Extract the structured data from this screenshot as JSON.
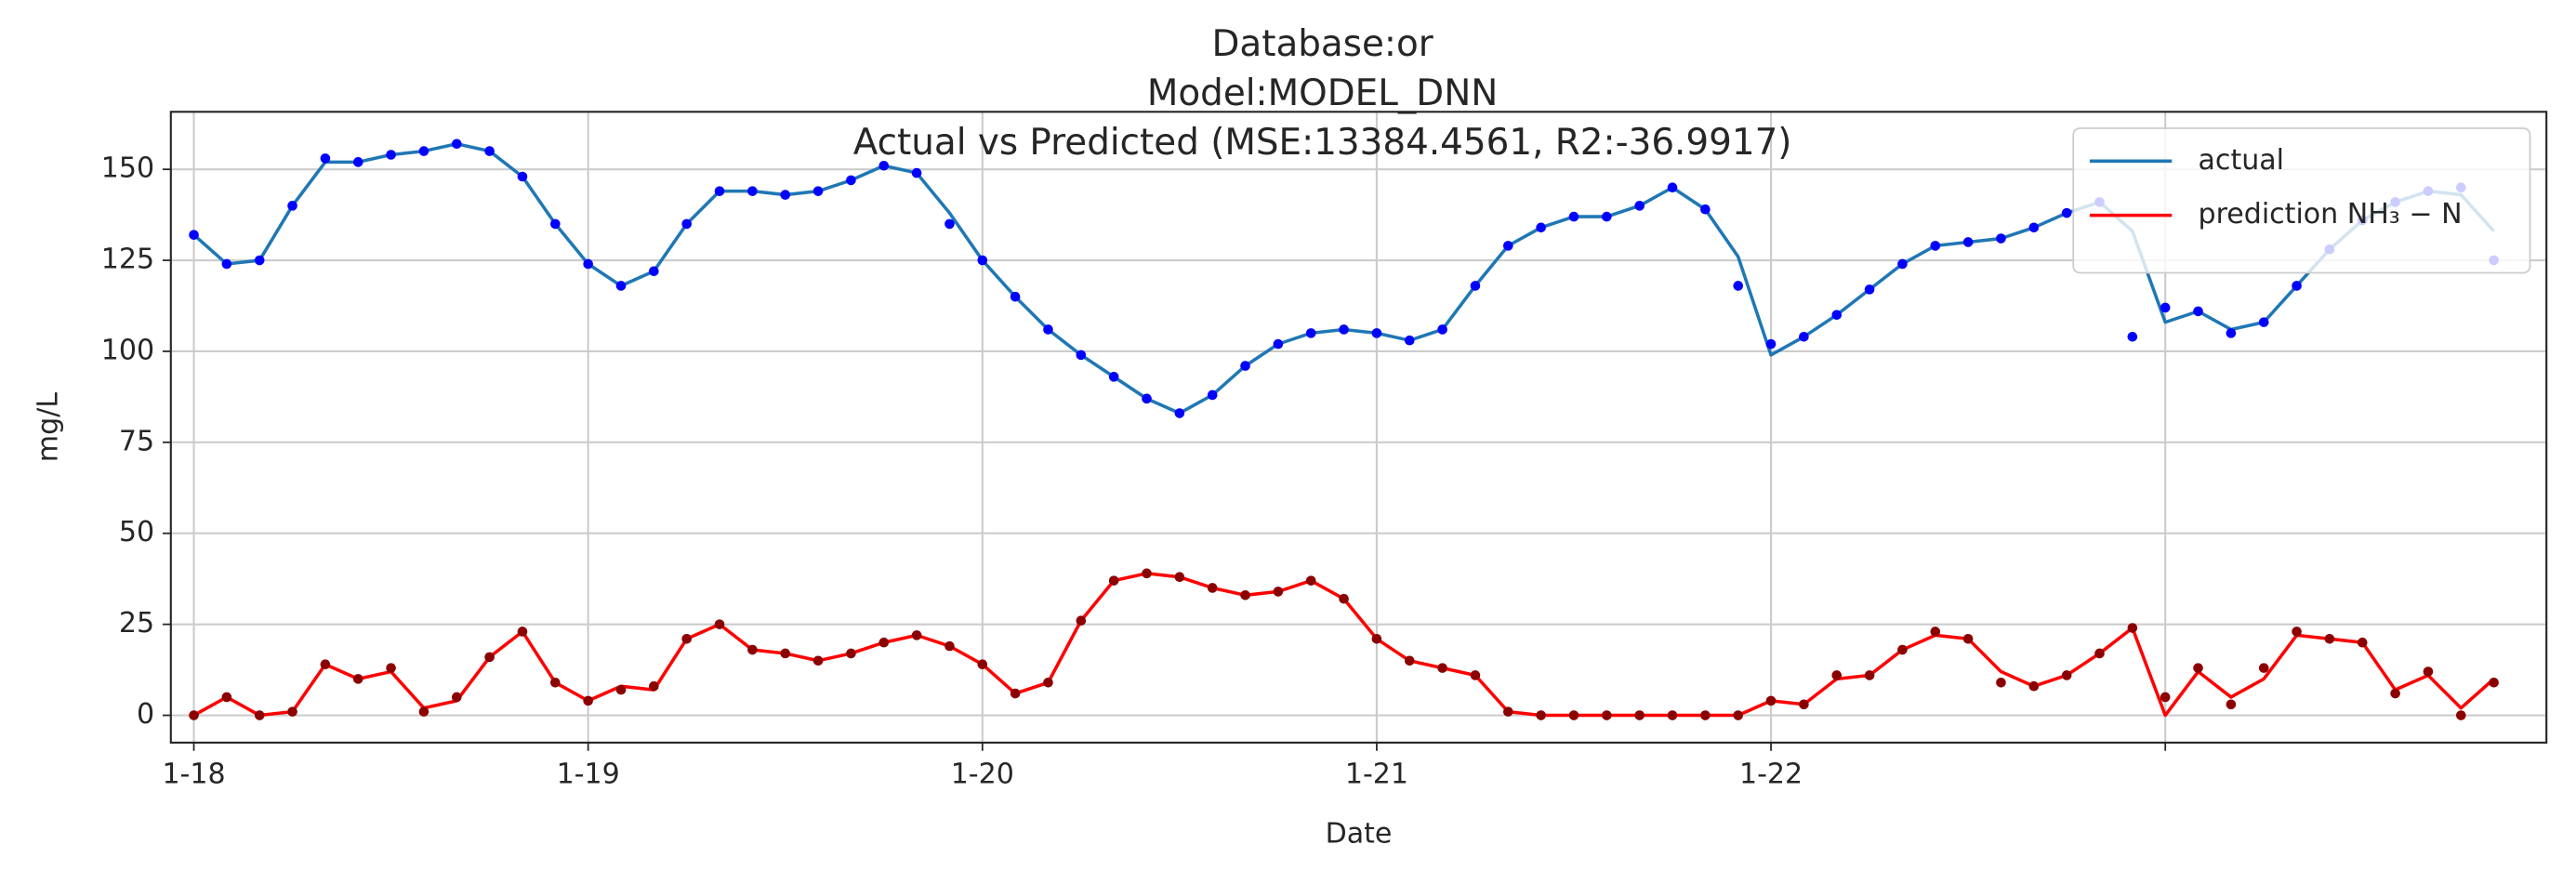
{
  "chart_data": {
    "type": "line",
    "title": [
      "Database:or",
      "Model:MODEL_DNN",
      "Actual vs Predicted (MSE:13384.4561, R2:-36.9917)"
    ],
    "xlabel": "Date",
    "ylabel": "mg/L",
    "x": [
      0,
      2,
      4,
      6,
      8,
      10,
      12,
      14,
      16,
      18,
      20,
      22,
      24,
      26,
      28,
      30,
      32,
      34,
      36,
      38,
      40,
      42,
      44,
      46,
      48,
      50,
      52,
      54,
      56,
      58,
      60,
      62,
      64,
      66,
      68,
      70,
      72,
      74,
      76,
      78,
      80,
      82,
      84,
      86,
      88,
      90,
      92,
      94,
      96,
      98,
      100,
      102,
      104,
      106,
      108,
      110,
      112,
      114,
      116,
      118,
      120,
      122,
      124,
      126,
      128,
      130,
      132,
      134,
      136,
      138,
      140
    ],
    "xlim": [
      -1.4,
      143.2
    ],
    "xticks": [
      {
        "value": 0,
        "label": "1-18"
      },
      {
        "value": 24,
        "label": "1-19"
      },
      {
        "value": 48,
        "label": "1-20"
      },
      {
        "value": 72,
        "label": "1-21"
      },
      {
        "value": 96,
        "label": "1-22"
      },
      {
        "value": 120,
        "label": null
      }
    ],
    "ylim": [
      -7.5,
      165.8
    ],
    "yticks": [
      0,
      25,
      50,
      75,
      100,
      125,
      150
    ],
    "grid": true,
    "legend": "upper right",
    "series": [
      {
        "name": "actual",
        "color": "#1f77b4",
        "style": "line",
        "values": [
          132,
          124,
          125,
          140,
          152,
          152,
          154,
          155,
          157,
          155,
          148,
          135,
          124,
          118,
          122,
          135,
          144,
          144,
          143,
          144,
          147,
          151,
          149,
          138,
          125,
          115,
          106,
          99,
          93,
          87,
          83,
          88,
          96,
          102,
          105,
          106,
          105,
          103,
          106,
          118,
          129,
          134,
          137,
          137,
          140,
          145,
          139,
          126,
          99,
          104,
          110,
          117,
          124,
          129,
          130,
          131,
          134,
          138,
          141,
          133,
          108,
          111,
          106,
          108,
          118,
          128,
          136,
          141,
          144,
          143,
          133
        ]
      },
      {
        "name": "prediction NH₃ − N",
        "color": "#ff0000",
        "style": "line",
        "values": [
          0,
          5,
          0,
          1,
          14,
          10,
          12,
          2,
          4,
          16,
          23,
          9,
          4,
          8,
          7,
          21,
          25,
          18,
          17,
          15,
          17,
          20,
          22,
          19,
          14,
          6,
          9,
          26,
          37,
          39,
          38,
          35,
          33,
          34,
          37,
          32,
          21,
          15,
          13,
          11,
          1,
          0,
          0,
          0,
          0,
          0,
          0,
          0,
          4,
          3,
          10,
          11,
          18,
          22,
          21,
          12,
          8,
          11,
          17,
          24,
          0,
          12,
          5,
          10,
          22,
          21,
          20,
          7,
          11,
          2,
          10
        ]
      },
      {
        "color": "#0000ff",
        "style": "dots",
        "values": [
          132,
          124,
          125,
          140,
          153,
          152,
          154,
          155,
          157,
          155,
          148,
          135,
          124,
          118,
          122,
          135,
          144,
          144,
          143,
          144,
          147,
          151,
          149,
          135,
          125,
          115,
          106,
          99,
          93,
          87,
          83,
          88,
          96,
          102,
          105,
          106,
          105,
          103,
          106,
          118,
          129,
          134,
          137,
          137,
          140,
          145,
          139,
          118,
          102,
          104,
          110,
          117,
          124,
          129,
          130,
          131,
          134,
          138,
          141,
          104,
          112,
          111,
          105,
          108,
          118,
          128,
          136,
          141,
          144,
          145,
          125
        ]
      },
      {
        "color": "#8b0000",
        "style": "dots",
        "values": [
          0,
          5,
          0,
          1,
          14,
          10,
          13,
          1,
          5,
          16,
          23,
          9,
          4,
          7,
          8,
          21,
          25,
          18,
          17,
          15,
          17,
          20,
          22,
          19,
          14,
          6,
          9,
          26,
          37,
          39,
          38,
          35,
          33,
          34,
          37,
          32,
          21,
          15,
          13,
          11,
          1,
          0,
          0,
          0,
          0,
          0,
          0,
          0,
          4,
          3,
          11,
          11,
          18,
          23,
          21,
          9,
          8,
          11,
          17,
          24,
          5,
          13,
          3,
          13,
          23,
          21,
          20,
          6,
          12,
          0,
          9
        ]
      }
    ]
  }
}
